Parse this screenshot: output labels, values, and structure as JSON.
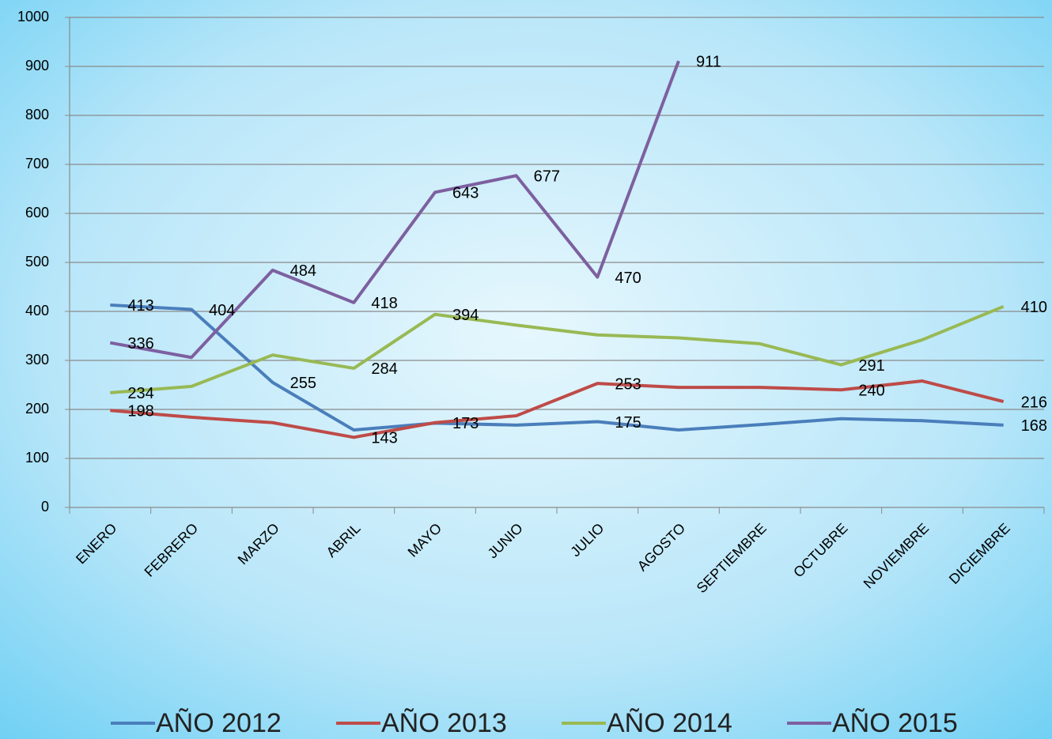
{
  "chart_data": {
    "type": "line",
    "categories": [
      "ENERO",
      "FEBRERO",
      "MARZO",
      "ABRIL",
      "MAYO",
      "JUNIO",
      "JULIO",
      "AGOSTO",
      "SEPTIEMBRE",
      "OCTUBRE",
      "NOVIEMBRE",
      "DICIEMBRE"
    ],
    "ylim": [
      0,
      1000
    ],
    "yticks": [
      0,
      100,
      200,
      300,
      400,
      500,
      600,
      700,
      800,
      900,
      1000
    ],
    "grid": true,
    "legend": "bottom",
    "series": [
      {
        "name": "AÑO 2012",
        "color": "#4a7ebb",
        "values": [
          413,
          404,
          255,
          158,
          172,
          168,
          175,
          158,
          169,
          181,
          177,
          168
        ],
        "value_labels": [
          "413",
          "404",
          "255",
          null,
          null,
          null,
          "175",
          null,
          null,
          null,
          null,
          "168"
        ]
      },
      {
        "name": "AÑO 2013",
        "color": "#be4b48",
        "values": [
          198,
          184,
          173,
          143,
          173,
          187,
          253,
          245,
          245,
          240,
          258,
          216
        ],
        "value_labels": [
          "198",
          null,
          null,
          "143",
          "173",
          null,
          "253",
          null,
          null,
          "240",
          null,
          "216"
        ]
      },
      {
        "name": "AÑO 2014",
        "color": "#98b954",
        "values": [
          234,
          247,
          311,
          284,
          394,
          372,
          352,
          346,
          334,
          291,
          342,
          410
        ],
        "value_labels": [
          "234",
          null,
          null,
          "284",
          "394",
          null,
          null,
          null,
          null,
          "291",
          null,
          "410"
        ]
      },
      {
        "name": "AÑO 2015",
        "color": "#7d60a0",
        "values": [
          336,
          306,
          484,
          418,
          643,
          677,
          470,
          911,
          null,
          null,
          null,
          null
        ],
        "value_labels": [
          "336",
          null,
          "484",
          "418",
          "643",
          "677",
          "470",
          "911",
          null,
          null,
          null,
          null
        ]
      }
    ]
  }
}
